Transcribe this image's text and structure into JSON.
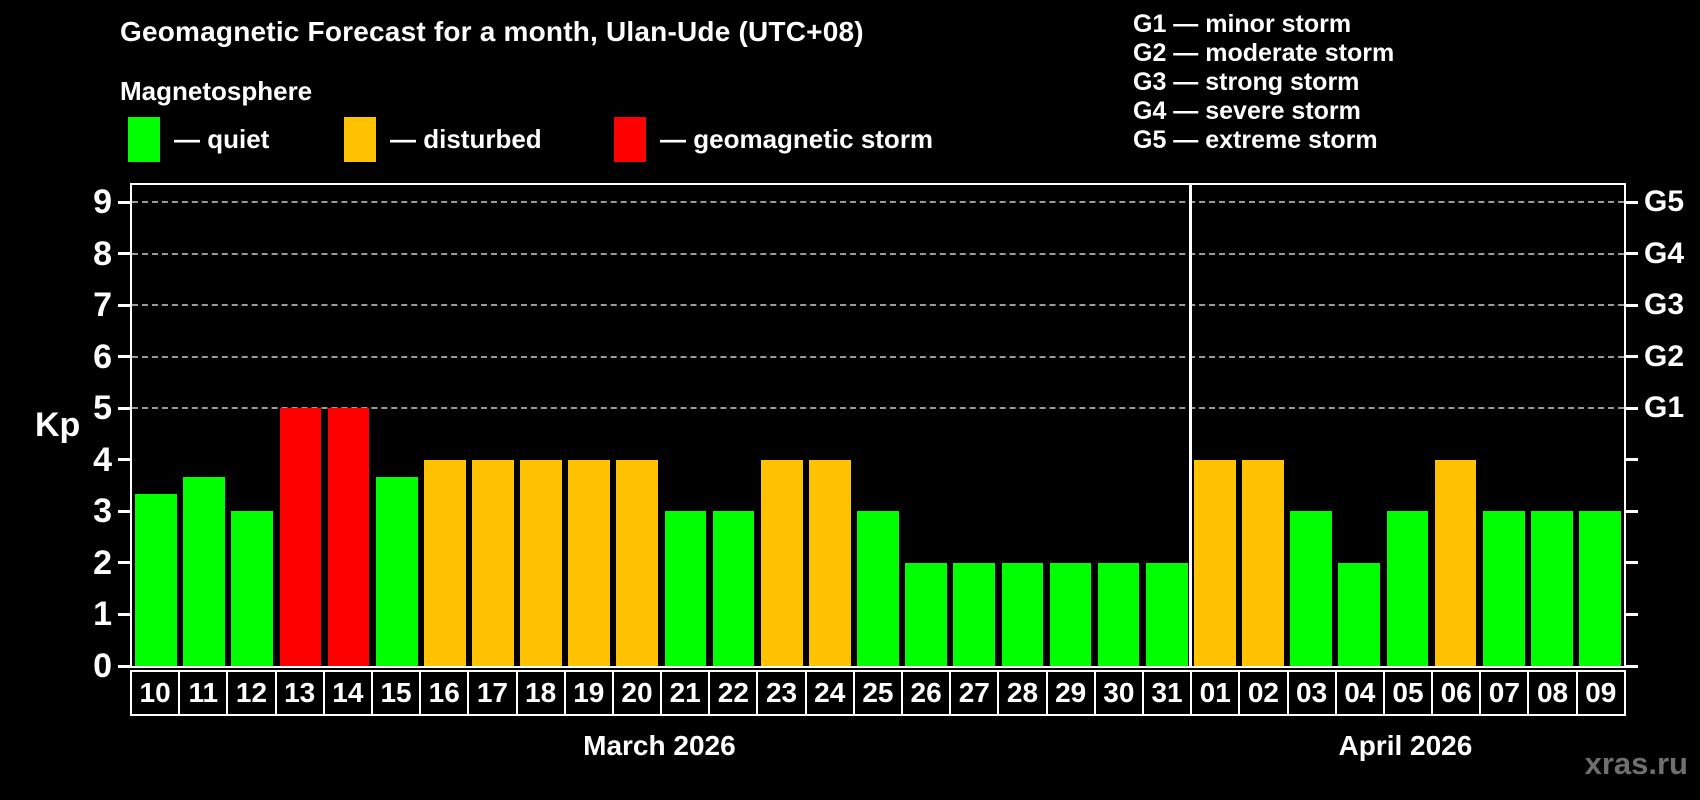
{
  "title": "Geomagnetic Forecast for a month, Ulan-Ude (UTC+08)",
  "subtitle": "Magnetosphere",
  "legend": {
    "items": [
      {
        "status": "quiet",
        "label": "— quiet",
        "color": "#00ff00"
      },
      {
        "status": "disturbed",
        "label": "— disturbed",
        "color": "#ffc200"
      },
      {
        "status": "storm",
        "label": "— geomagnetic storm",
        "color": "#ff0000"
      }
    ]
  },
  "g_scale_legend": {
    "items": [
      {
        "label": "G1 — minor storm"
      },
      {
        "label": "G2 — moderate storm"
      },
      {
        "label": "G3 — strong storm"
      },
      {
        "label": "G4 — severe storm"
      },
      {
        "label": "G5 — extreme storm"
      }
    ]
  },
  "watermark": "xras.ru",
  "chart_data": {
    "type": "bar",
    "title": "Geomagnetic Forecast for a month, Ulan-Ude (UTC+08)",
    "ylabel": "Kp",
    "ylim": [
      0,
      9
    ],
    "yticks": [
      0,
      1,
      2,
      3,
      4,
      5,
      6,
      7,
      8,
      9
    ],
    "gridlines_at": [
      5,
      6,
      7,
      8,
      9
    ],
    "grid": "dashed",
    "right_axis_labels": [
      {
        "kp": 5,
        "label": "G1"
      },
      {
        "kp": 6,
        "label": "G2"
      },
      {
        "kp": 7,
        "label": "G3"
      },
      {
        "kp": 8,
        "label": "G4"
      },
      {
        "kp": 9,
        "label": "G5"
      }
    ],
    "status_colors": {
      "quiet": "#00ff00",
      "disturbed": "#ffc200",
      "storm": "#ff0000"
    },
    "months": [
      {
        "label": "March 2026",
        "days_count": 22
      },
      {
        "label": "April 2026",
        "days_count": 9
      }
    ],
    "days": [
      {
        "day": "10",
        "kp": 3.33,
        "status": "quiet"
      },
      {
        "day": "11",
        "kp": 3.67,
        "status": "quiet"
      },
      {
        "day": "12",
        "kp": 3.0,
        "status": "quiet"
      },
      {
        "day": "13",
        "kp": 5.0,
        "status": "storm"
      },
      {
        "day": "14",
        "kp": 5.0,
        "status": "storm"
      },
      {
        "day": "15",
        "kp": 3.67,
        "status": "quiet"
      },
      {
        "day": "16",
        "kp": 4.0,
        "status": "disturbed"
      },
      {
        "day": "17",
        "kp": 4.0,
        "status": "disturbed"
      },
      {
        "day": "18",
        "kp": 4.0,
        "status": "disturbed"
      },
      {
        "day": "19",
        "kp": 4.0,
        "status": "disturbed"
      },
      {
        "day": "20",
        "kp": 4.0,
        "status": "disturbed"
      },
      {
        "day": "21",
        "kp": 3.0,
        "status": "quiet"
      },
      {
        "day": "22",
        "kp": 3.0,
        "status": "quiet"
      },
      {
        "day": "23",
        "kp": 4.0,
        "status": "disturbed"
      },
      {
        "day": "24",
        "kp": 4.0,
        "status": "disturbed"
      },
      {
        "day": "25",
        "kp": 3.0,
        "status": "quiet"
      },
      {
        "day": "26",
        "kp": 2.0,
        "status": "quiet"
      },
      {
        "day": "27",
        "kp": 2.0,
        "status": "quiet"
      },
      {
        "day": "28",
        "kp": 2.0,
        "status": "quiet"
      },
      {
        "day": "29",
        "kp": 2.0,
        "status": "quiet"
      },
      {
        "day": "30",
        "kp": 2.0,
        "status": "quiet"
      },
      {
        "day": "31",
        "kp": 2.0,
        "status": "quiet"
      },
      {
        "day": "01",
        "kp": 4.0,
        "status": "disturbed"
      },
      {
        "day": "02",
        "kp": 4.0,
        "status": "disturbed"
      },
      {
        "day": "03",
        "kp": 3.0,
        "status": "quiet"
      },
      {
        "day": "04",
        "kp": 2.0,
        "status": "quiet"
      },
      {
        "day": "05",
        "kp": 3.0,
        "status": "quiet"
      },
      {
        "day": "06",
        "kp": 4.0,
        "status": "disturbed"
      },
      {
        "day": "07",
        "kp": 3.0,
        "status": "quiet"
      },
      {
        "day": "08",
        "kp": 3.0,
        "status": "quiet"
      },
      {
        "day": "09",
        "kp": 3.0,
        "status": "quiet"
      }
    ]
  }
}
